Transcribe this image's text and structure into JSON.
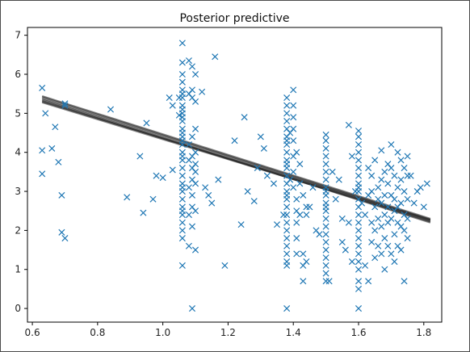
{
  "chart_data": {
    "type": "scatter",
    "title": "Posterior predictive",
    "xlabel": "",
    "ylabel": "",
    "xlim": [
      0.585,
      1.855
    ],
    "ylim": [
      -0.35,
      7.2
    ],
    "xticks": [
      0.6,
      0.8,
      1.0,
      1.2,
      1.4,
      1.6,
      1.8
    ],
    "xtick_labels": [
      "0.6",
      "0.8",
      "1.0",
      "1.2",
      "1.4",
      "1.6",
      "1.8"
    ],
    "yticks": [
      0,
      1,
      2,
      3,
      4,
      5,
      6,
      7
    ],
    "ytick_labels": [
      "0",
      "1",
      "2",
      "3",
      "4",
      "5",
      "6",
      "7"
    ],
    "grid": false,
    "marker": "x",
    "colors": {
      "points": "#1f77b4",
      "lines": "#222222"
    },
    "regression_lines": [
      {
        "x": [
          0.63,
          1.82
        ],
        "y": [
          5.38,
          2.26
        ]
      },
      {
        "x": [
          0.63,
          1.82
        ],
        "y": [
          5.32,
          2.22
        ]
      },
      {
        "x": [
          0.63,
          1.82
        ],
        "y": [
          5.42,
          2.28
        ]
      },
      {
        "x": [
          0.63,
          1.82
        ],
        "y": [
          5.28,
          2.24
        ]
      },
      {
        "x": [
          0.63,
          1.82
        ],
        "y": [
          5.35,
          2.2
        ]
      },
      {
        "x": [
          0.63,
          1.82
        ],
        "y": [
          5.44,
          2.3
        ]
      },
      {
        "x": [
          0.63,
          1.82
        ],
        "y": [
          5.3,
          2.27
        ]
      }
    ],
    "points": {
      "x": [
        0.63,
        0.63,
        0.63,
        0.64,
        0.66,
        0.67,
        0.68,
        0.69,
        0.69,
        0.7,
        0.7,
        0.7,
        0.84,
        0.89,
        0.93,
        0.94,
        0.95,
        0.97,
        0.98,
        1.0,
        1.02,
        1.03,
        1.03,
        1.05,
        1.05,
        1.06,
        1.06,
        1.06,
        1.06,
        1.06,
        1.06,
        1.06,
        1.06,
        1.06,
        1.06,
        1.06,
        1.06,
        1.06,
        1.06,
        1.06,
        1.06,
        1.06,
        1.06,
        1.06,
        1.06,
        1.06,
        1.06,
        1.06,
        1.06,
        1.06,
        1.06,
        1.06,
        1.06,
        1.06,
        1.06,
        1.06,
        1.06,
        1.06,
        1.08,
        1.08,
        1.08,
        1.08,
        1.08,
        1.08,
        1.08,
        1.09,
        1.09,
        1.09,
        1.09,
        1.09,
        1.09,
        1.09,
        1.09,
        1.09,
        1.09,
        1.09,
        1.1,
        1.1,
        1.1,
        1.1,
        1.1,
        1.1,
        1.1,
        1.1,
        1.1,
        1.12,
        1.13,
        1.14,
        1.15,
        1.16,
        1.17,
        1.19,
        1.22,
        1.24,
        1.25,
        1.26,
        1.28,
        1.29,
        1.3,
        1.31,
        1.32,
        1.34,
        1.35,
        1.37,
        1.38,
        1.38,
        1.38,
        1.38,
        1.38,
        1.38,
        1.38,
        1.38,
        1.38,
        1.38,
        1.38,
        1.38,
        1.38,
        1.38,
        1.38,
        1.38,
        1.38,
        1.38,
        1.38,
        1.38,
        1.38,
        1.38,
        1.38,
        1.38,
        1.38,
        1.38,
        1.38,
        1.39,
        1.39,
        1.4,
        1.4,
        1.4,
        1.4,
        1.4,
        1.4,
        1.4,
        1.4,
        1.41,
        1.41,
        1.41,
        1.41,
        1.41,
        1.41,
        1.42,
        1.42,
        1.42,
        1.43,
        1.43,
        1.43,
        1.43,
        1.44,
        1.44,
        1.44,
        1.45,
        1.46,
        1.47,
        1.48,
        1.5,
        1.5,
        1.5,
        1.5,
        1.5,
        1.5,
        1.5,
        1.5,
        1.5,
        1.5,
        1.5,
        1.5,
        1.5,
        1.5,
        1.5,
        1.5,
        1.5,
        1.5,
        1.5,
        1.5,
        1.5,
        1.5,
        1.51,
        1.52,
        1.53,
        1.54,
        1.55,
        1.55,
        1.56,
        1.57,
        1.57,
        1.58,
        1.58,
        1.59,
        1.6,
        1.6,
        1.6,
        1.6,
        1.6,
        1.6,
        1.6,
        1.6,
        1.6,
        1.6,
        1.6,
        1.6,
        1.6,
        1.6,
        1.6,
        1.6,
        1.6,
        1.6,
        1.6,
        1.6,
        1.6,
        1.6,
        1.6,
        1.61,
        1.62,
        1.62,
        1.63,
        1.63,
        1.63,
        1.64,
        1.64,
        1.64,
        1.64,
        1.65,
        1.65,
        1.65,
        1.65,
        1.66,
        1.66,
        1.66,
        1.66,
        1.67,
        1.67,
        1.67,
        1.67,
        1.67,
        1.68,
        1.68,
        1.68,
        1.68,
        1.68,
        1.69,
        1.69,
        1.69,
        1.69,
        1.69,
        1.7,
        1.7,
        1.7,
        1.7,
        1.7,
        1.71,
        1.71,
        1.71,
        1.71,
        1.71,
        1.72,
        1.72,
        1.72,
        1.72,
        1.72,
        1.73,
        1.73,
        1.73,
        1.73,
        1.73,
        1.74,
        1.74,
        1.74,
        1.74,
        1.74,
        1.75,
        1.75,
        1.75,
        1.75,
        1.75,
        1.76,
        1.77,
        1.78,
        1.79,
        1.8,
        1.81
      ],
      "y": [
        5.65,
        3.45,
        4.05,
        5.0,
        4.1,
        4.65,
        3.75,
        2.9,
        1.95,
        1.8,
        5.2,
        5.25,
        5.1,
        2.85,
        3.9,
        2.45,
        4.75,
        2.8,
        3.4,
        3.35,
        5.4,
        3.55,
        5.2,
        5.4,
        4.95,
        6.8,
        6.3,
        6.0,
        5.8,
        5.6,
        5.4,
        5.2,
        5.0,
        4.8,
        4.6,
        4.4,
        4.2,
        4.0,
        3.8,
        3.6,
        3.4,
        3.2,
        3.0,
        2.8,
        2.6,
        2.4,
        2.2,
        2.0,
        1.8,
        1.1,
        4.3,
        4.9,
        5.5,
        3.9,
        4.5,
        5.1,
        2.5,
        3.1,
        6.35,
        5.5,
        4.2,
        3.8,
        3.1,
        2.4,
        1.6,
        6.2,
        5.6,
        5.4,
        4.4,
        3.9,
        3.6,
        3.3,
        2.9,
        2.6,
        2.1,
        0.0,
        6.0,
        5.3,
        4.6,
        4.0,
        3.7,
        3.5,
        3.2,
        2.5,
        1.5,
        5.55,
        3.1,
        2.9,
        2.7,
        6.45,
        3.3,
        1.1,
        4.3,
        2.15,
        4.9,
        3.0,
        2.75,
        3.6,
        4.4,
        4.1,
        3.4,
        3.2,
        2.15,
        2.4,
        5.2,
        5.0,
        4.8,
        4.6,
        4.4,
        4.2,
        4.0,
        3.8,
        3.6,
        3.4,
        3.2,
        3.0,
        2.8,
        2.6,
        2.4,
        2.2,
        2.0,
        1.8,
        1.6,
        1.4,
        1.2,
        1.1,
        0.0,
        4.3,
        3.7,
        2.9,
        5.4,
        4.5,
        3.3,
        5.6,
        5.2,
        4.9,
        4.6,
        4.3,
        3.9,
        3.5,
        3.1,
        2.8,
        2.5,
        2.2,
        1.8,
        1.4,
        4.0,
        3.7,
        3.2,
        2.4,
        1.4,
        1.1,
        0.7,
        2.9,
        2.6,
        2.4,
        1.2,
        2.6,
        3.1,
        2.0,
        1.9,
        4.45,
        4.3,
        4.1,
        3.9,
        3.7,
        3.5,
        3.3,
        3.1,
        2.9,
        2.7,
        2.5,
        2.3,
        2.1,
        1.9,
        1.7,
        1.5,
        1.3,
        1.1,
        0.9,
        0.7,
        3.0,
        2.6,
        0.7,
        3.5,
        2.8,
        3.3,
        1.7,
        2.3,
        1.5,
        4.7,
        2.2,
        1.2,
        3.9,
        3.0,
        4.55,
        4.4,
        4.2,
        4.0,
        3.8,
        3.6,
        3.4,
        3.2,
        3.0,
        2.8,
        2.6,
        2.4,
        2.2,
        2.0,
        1.8,
        1.6,
        1.4,
        1.2,
        1.0,
        0.7,
        0.5,
        0.0,
        3.1,
        2.7,
        2.4,
        1.1,
        3.6,
        2.9,
        0.7,
        3.4,
        3.0,
        2.2,
        1.7,
        3.8,
        2.6,
        2.0,
        1.3,
        3.1,
        2.8,
        2.3,
        1.6,
        4.05,
        3.3,
        2.7,
        2.1,
        1.4,
        3.5,
        2.9,
        2.4,
        1.8,
        1.0,
        3.7,
        3.2,
        2.6,
        2.2,
        1.6,
        4.2,
        3.6,
        2.9,
        2.3,
        1.4,
        3.4,
        2.8,
        2.5,
        1.9,
        1.2,
        4.0,
        3.1,
        2.6,
        2.2,
        1.6,
        3.8,
        3.3,
        2.7,
        2.1,
        1.5,
        3.6,
        3.0,
        2.4,
        2.0,
        0.7,
        3.9,
        3.4,
        2.8,
        2.3,
        1.8,
        3.4,
        2.7,
        3.0,
        3.1,
        2.6,
        3.2
      ]
    }
  }
}
